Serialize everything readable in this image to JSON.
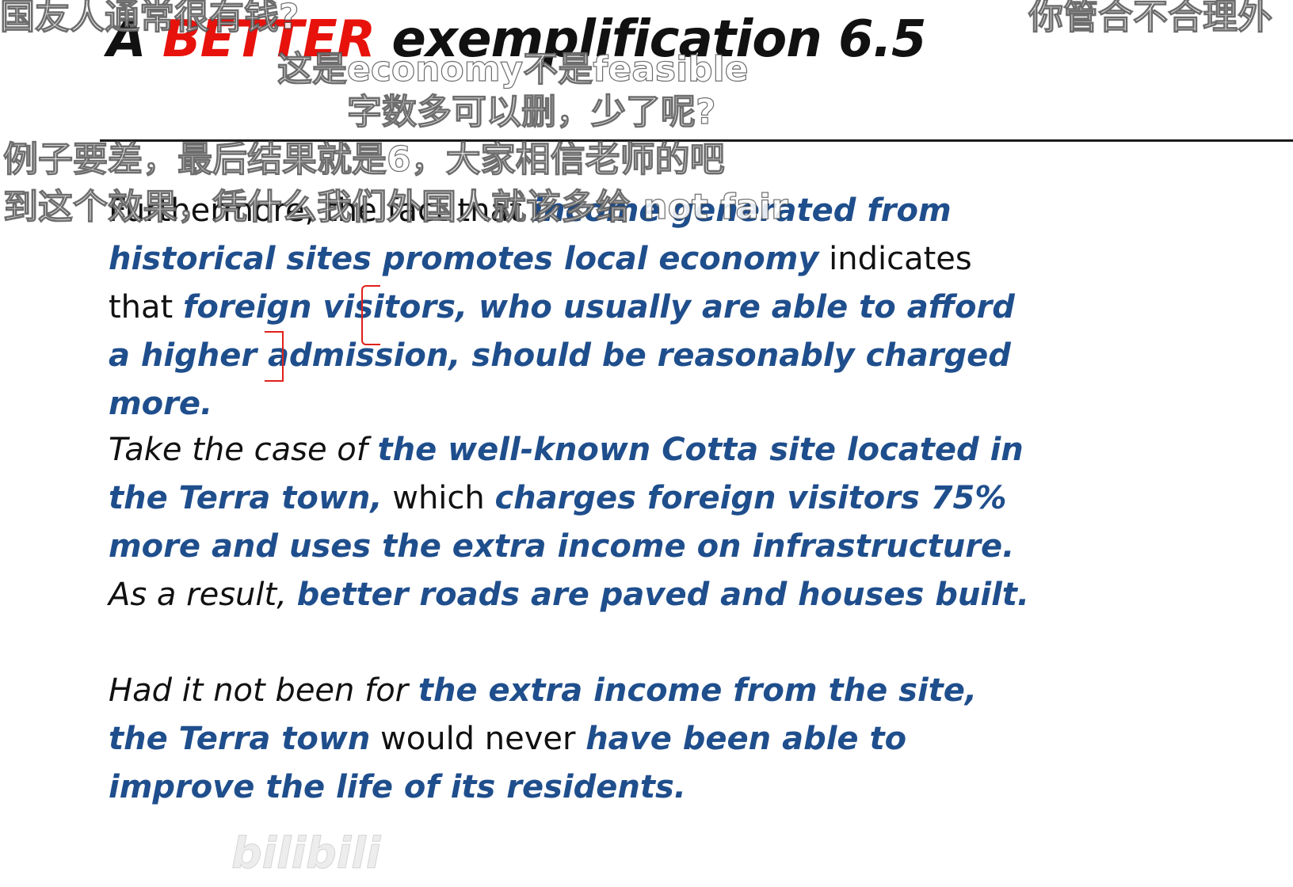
{
  "title": {
    "prefix": "A",
    "accent": "BETTER",
    "rest": "exemplification 6.5"
  },
  "paragraph1": {
    "s1": "Furthermore, the fact that ",
    "s2": "income generated from historical sites promotes local economy",
    "s3": " indicates that ",
    "s4": "foreign visitors, who usually are able to afford a higher admission, should be reasonably charged more."
  },
  "paragraph2": {
    "s1": "Take the case of ",
    "s2": "the well-known Cotta site located in the Terra town,",
    "s3": " which ",
    "s4": "charges foreign visitors 75% more and uses the extra income on infrastructure.",
    "s5": " As a result, ",
    "s6": "better roads are paved and houses built."
  },
  "paragraph3": {
    "s1": "Had it not been for ",
    "s2": "the extra income from the site, the Terra town",
    "s3": " would never ",
    "s4": "have been able to improve the life of its residents."
  },
  "danmaku": [
    "国友人通常很有钱?",
    "你管合不合理外",
    "这是economy不是feasible",
    "字数多可以删，少了呢?",
    "例子要差，最后结果就是6，大家相信老师的吧",
    "到这个效果，凭什么我们外国人就该多给 not fair"
  ],
  "watermark": "bilibili",
  "uploader": ""
}
